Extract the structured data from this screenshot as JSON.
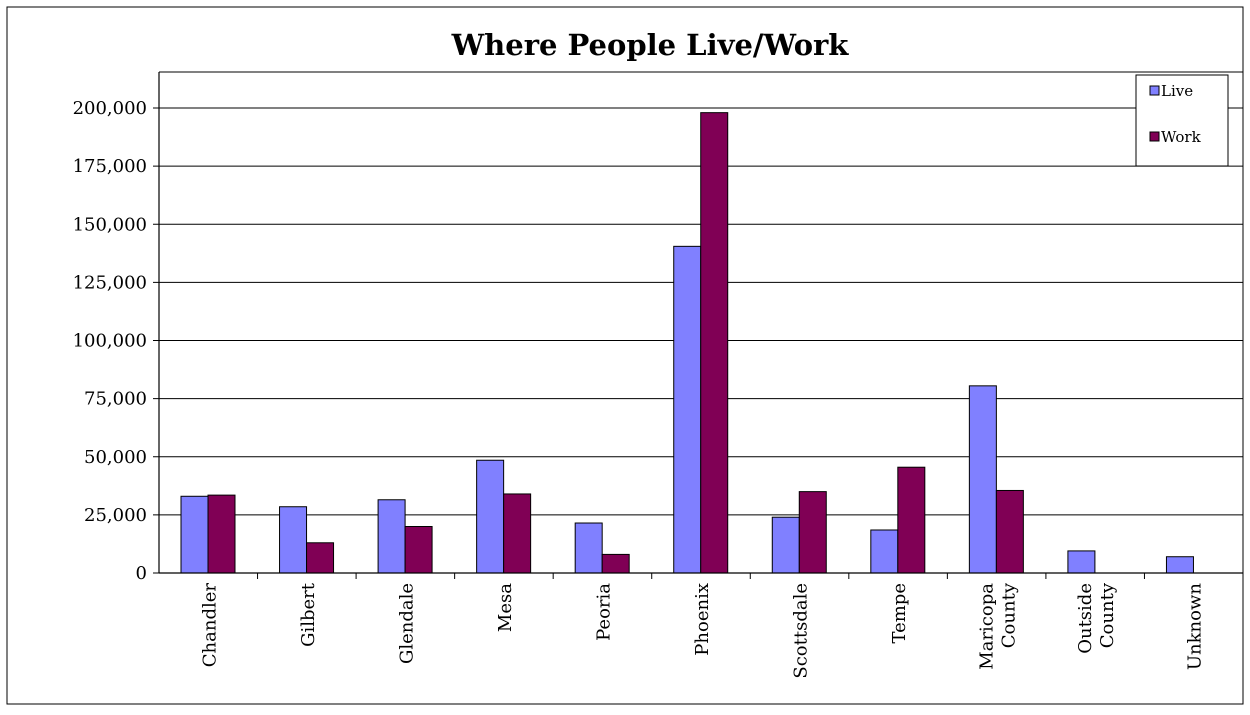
{
  "chart_data": {
    "type": "bar",
    "title": "Where People Live/Work",
    "xlabel": "",
    "ylabel": "",
    "ylim": [
      0,
      200000
    ],
    "ytick_step": 25000,
    "y_tick_labels": [
      "0",
      "25,000",
      "50,000",
      "75,000",
      "100,000",
      "125,000",
      "150,000",
      "175,000",
      "200,000"
    ],
    "categories": [
      [
        "Chandler"
      ],
      [
        "Gilbert"
      ],
      [
        "Glendale"
      ],
      [
        "Mesa"
      ],
      [
        "Peoria"
      ],
      [
        "Phoenix"
      ],
      [
        "Scottsdale"
      ],
      [
        "Tempe"
      ],
      [
        "Maricopa",
        "County"
      ],
      [
        "Outside",
        "County"
      ],
      [
        "Unknown"
      ]
    ],
    "series": [
      {
        "name": "Live",
        "color": "#8080ff",
        "values": [
          33000,
          28500,
          31500,
          48500,
          21500,
          140500,
          24000,
          18500,
          80500,
          9500,
          7000
        ]
      },
      {
        "name": "Work",
        "color": "#800055",
        "values": [
          33500,
          13000,
          20000,
          34000,
          8000,
          198000,
          35000,
          45500,
          35500,
          0,
          0
        ]
      }
    ],
    "grid": true,
    "legend_position": "top-right"
  }
}
